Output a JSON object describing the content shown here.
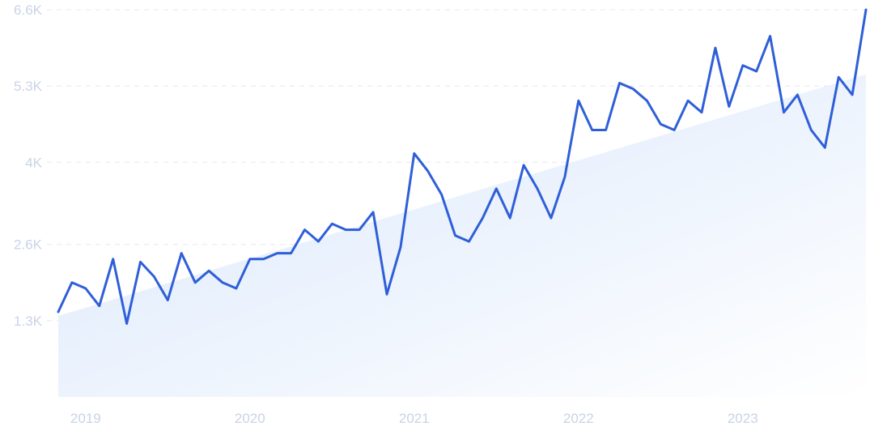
{
  "chart_data": {
    "type": "line",
    "title": "",
    "xlabel": "",
    "ylabel": "",
    "x_start": "2018-11",
    "x_ticks": [
      {
        "label": "2019",
        "x": "2019-01"
      },
      {
        "label": "2020",
        "x": "2020-01"
      },
      {
        "label": "2021",
        "x": "2021-01"
      },
      {
        "label": "2022",
        "x": "2022-01"
      },
      {
        "label": "2023",
        "x": "2023-01"
      }
    ],
    "y_ticks": [
      {
        "label": "1.3K",
        "value": 1300
      },
      {
        "label": "2.6K",
        "value": 2600
      },
      {
        "label": "4K",
        "value": 4000
      },
      {
        "label": "5.3K",
        "value": 5300
      },
      {
        "label": "6.6K",
        "value": 6600
      }
    ],
    "ylim": [
      0,
      6600
    ],
    "grid": true,
    "line_color": "#2f5fd8",
    "trend_fill_color": "#dce9fb",
    "trend": {
      "start": 1380,
      "end": 5500
    },
    "series": [
      {
        "name": "",
        "values": [
          1450,
          1950,
          1850,
          1550,
          2350,
          1250,
          2300,
          2050,
          1650,
          2450,
          1950,
          2150,
          1950,
          1850,
          2350,
          2350,
          2450,
          2450,
          2850,
          2650,
          2950,
          2850,
          2850,
          3150,
          1750,
          2550,
          4150,
          3850,
          3450,
          2750,
          2650,
          3050,
          3550,
          3050,
          3950,
          3550,
          3050,
          3750,
          5050,
          4550,
          4550,
          5350,
          5250,
          5050,
          4650,
          4550,
          5050,
          4850,
          5950,
          4950,
          5650,
          5550,
          6150,
          4850,
          5150,
          4550,
          4250,
          5450,
          5150,
          6600
        ]
      }
    ]
  }
}
